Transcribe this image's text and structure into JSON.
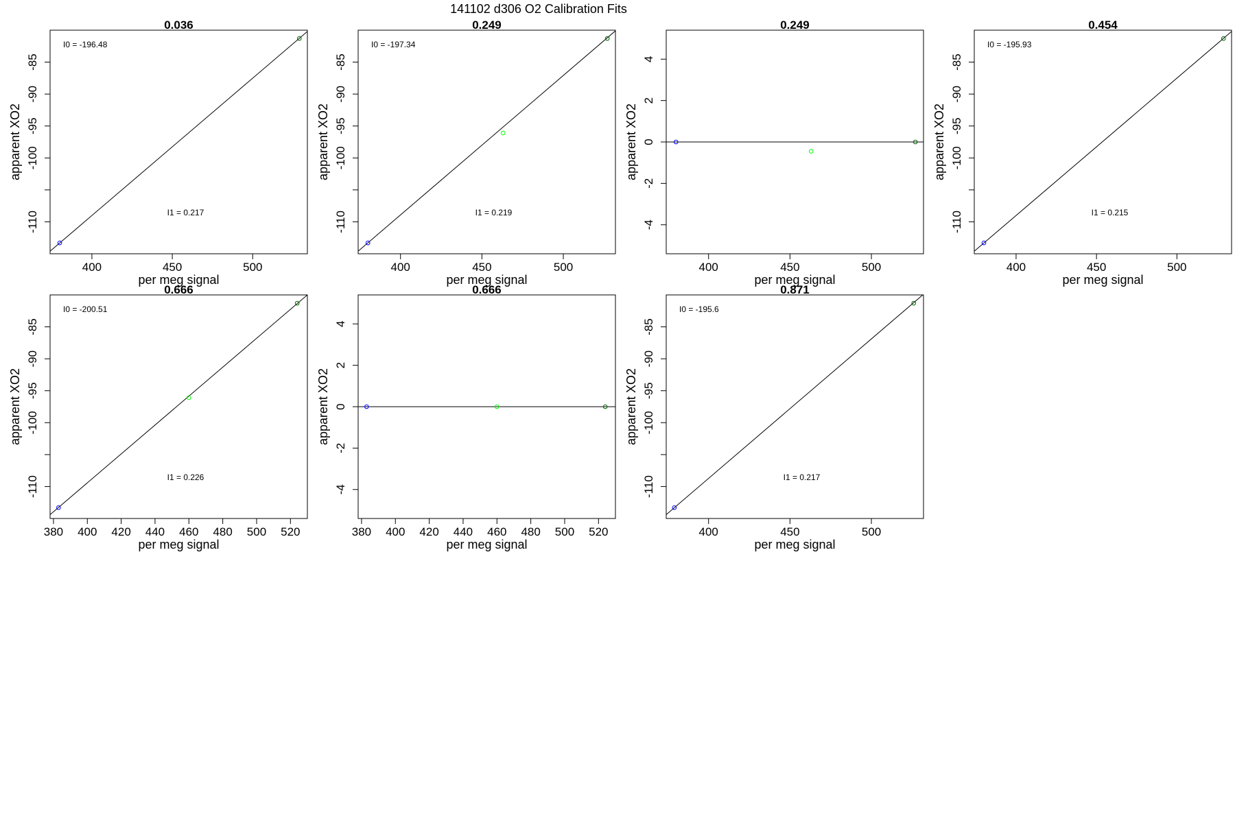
{
  "figure_title": "141102   d306   O2 Calibration Fits",
  "colors": {
    "axes": "#000000",
    "fit_line": "#000000",
    "low_point": "#0000ff",
    "mid_point": "#00ff00",
    "high_point": "#006400"
  },
  "chart_data": [
    {
      "type": "scatter",
      "title": "0.036",
      "xlabel": "per meg signal",
      "ylabel": "apparent XO2",
      "xlim": [
        374,
        534
      ],
      "ylim": [
        -115,
        -80
      ],
      "xticks": [
        400,
        450,
        500
      ],
      "yticks": [
        -85,
        -90,
        -95,
        -100,
        -105,
        -110
      ],
      "ytick_labels": [
        "-85",
        "-90",
        "-95",
        "-100",
        "",
        "-110"
      ],
      "points": [
        {
          "x": 380,
          "y": -113.3,
          "color": "low_point"
        },
        {
          "x": 529,
          "y": -81.3,
          "color": "high_point"
        }
      ],
      "fit_line": [
        {
          "x": 374,
          "y": -114.6
        },
        {
          "x": 534,
          "y": -80.2
        }
      ],
      "annotations": {
        "I0": "I0 =  -196.48",
        "I1": "I1 =  0.217"
      }
    },
    {
      "type": "scatter",
      "title": "0.249",
      "xlabel": "per meg signal",
      "ylabel": "apparent XO2",
      "xlim": [
        374,
        532
      ],
      "ylim": [
        -115,
        -80
      ],
      "xticks": [
        400,
        450,
        500
      ],
      "yticks": [
        -85,
        -90,
        -95,
        -100,
        -105,
        -110
      ],
      "ytick_labels": [
        "-85",
        "-90",
        "-95",
        "-100",
        "",
        "-110"
      ],
      "points": [
        {
          "x": 380,
          "y": -113.3,
          "color": "low_point"
        },
        {
          "x": 463,
          "y": -96.1,
          "color": "mid_point"
        },
        {
          "x": 527,
          "y": -81.3,
          "color": "high_point"
        }
      ],
      "fit_line": [
        {
          "x": 374,
          "y": -114.6
        },
        {
          "x": 532,
          "y": -80.1
        }
      ],
      "annotations": {
        "I0": "I0 =  -197.34",
        "I1": "I1 =  0.219"
      }
    },
    {
      "type": "scatter",
      "title": "0.249",
      "xlabel": "per meg signal",
      "ylabel": "apparent XO2",
      "xlim": [
        374,
        532
      ],
      "ylim": [
        -5.4,
        5.4
      ],
      "xticks": [
        400,
        450,
        500
      ],
      "yticks": [
        4,
        2,
        0,
        -2,
        -4
      ],
      "ytick_labels": [
        "4",
        "2",
        "0",
        "-2",
        "-4"
      ],
      "points": [
        {
          "x": 380,
          "y": 0,
          "color": "low_point"
        },
        {
          "x": 463,
          "y": -0.45,
          "color": "mid_point"
        },
        {
          "x": 527,
          "y": 0,
          "color": "high_point"
        }
      ],
      "fit_line": [
        {
          "x": 374,
          "y": 0
        },
        {
          "x": 532,
          "y": 0
        }
      ],
      "annotations": {}
    },
    {
      "type": "scatter",
      "title": "0.454",
      "xlabel": "per meg signal",
      "ylabel": "apparent XO2",
      "xlim": [
        374,
        534
      ],
      "ylim": [
        -115,
        -80
      ],
      "xticks": [
        400,
        450,
        500
      ],
      "yticks": [
        -85,
        -90,
        -95,
        -100,
        -105,
        -110
      ],
      "ytick_labels": [
        "-85",
        "-90",
        "-95",
        "-100",
        "",
        "-110"
      ],
      "points": [
        {
          "x": 380,
          "y": -113.3,
          "color": "low_point"
        },
        {
          "x": 529,
          "y": -81.3,
          "color": "high_point"
        }
      ],
      "fit_line": [
        {
          "x": 374,
          "y": -114.6
        },
        {
          "x": 534,
          "y": -80.2
        }
      ],
      "annotations": {
        "I0": "I0 =  -195.93",
        "I1": "I1 =  0.215"
      }
    },
    {
      "type": "scatter",
      "title": "0.666",
      "xlabel": "per meg signal",
      "ylabel": "apparent XO2",
      "xlim": [
        378,
        530
      ],
      "ylim": [
        -115,
        -80
      ],
      "xticks": [
        380,
        400,
        420,
        440,
        460,
        480,
        500,
        520
      ],
      "yticks": [
        -85,
        -90,
        -95,
        -100,
        -105,
        -110
      ],
      "ytick_labels": [
        "-85",
        "-90",
        "-95",
        "-100",
        "",
        "-110"
      ],
      "points": [
        {
          "x": 383,
          "y": -113.3,
          "color": "low_point"
        },
        {
          "x": 460,
          "y": -96.1,
          "color": "mid_point"
        },
        {
          "x": 524,
          "y": -81.3,
          "color": "high_point"
        }
      ],
      "fit_line": [
        {
          "x": 378,
          "y": -114.4
        },
        {
          "x": 530,
          "y": -80.0
        }
      ],
      "annotations": {
        "I0": "I0 =  -200.51",
        "I1": "I1 =  0.226"
      }
    },
    {
      "type": "scatter",
      "title": "0.666",
      "xlabel": "per meg signal",
      "ylabel": "apparent XO2",
      "xlim": [
        378,
        530
      ],
      "ylim": [
        -5.4,
        5.4
      ],
      "xticks": [
        380,
        400,
        420,
        440,
        460,
        480,
        500,
        520
      ],
      "yticks": [
        4,
        2,
        0,
        -2,
        -4
      ],
      "ytick_labels": [
        "4",
        "2",
        "0",
        "-2",
        "-4"
      ],
      "points": [
        {
          "x": 383,
          "y": 0,
          "color": "low_point"
        },
        {
          "x": 460,
          "y": 0,
          "color": "mid_point"
        },
        {
          "x": 524,
          "y": 0,
          "color": "high_point"
        }
      ],
      "fit_line": [
        {
          "x": 378,
          "y": 0
        },
        {
          "x": 530,
          "y": 0
        }
      ],
      "annotations": {}
    },
    {
      "type": "scatter",
      "title": "0.871",
      "xlabel": "per meg signal",
      "ylabel": "apparent XO2",
      "xlim": [
        374,
        532
      ],
      "ylim": [
        -115,
        -80
      ],
      "xticks": [
        400,
        450,
        500
      ],
      "yticks": [
        -85,
        -90,
        -95,
        -100,
        -105,
        -110
      ],
      "ytick_labels": [
        "-85",
        "-90",
        "-95",
        "-100",
        "",
        "-110"
      ],
      "points": [
        {
          "x": 379,
          "y": -113.3,
          "color": "low_point"
        },
        {
          "x": 526,
          "y": -81.3,
          "color": "high_point"
        }
      ],
      "fit_line": [
        {
          "x": 374,
          "y": -114.4
        },
        {
          "x": 532,
          "y": -79.9
        }
      ],
      "annotations": {
        "I0": "I0 =  -195.6",
        "I1": "I1 =  0.217"
      }
    }
  ]
}
